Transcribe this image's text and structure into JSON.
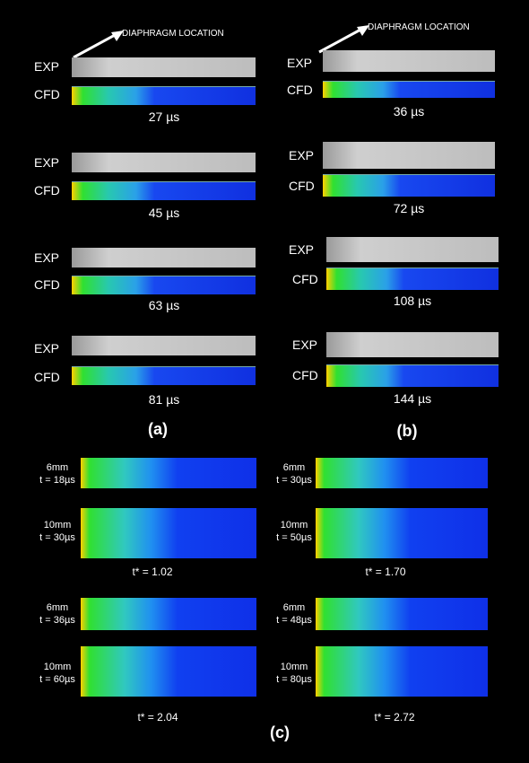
{
  "panel_a": {
    "label": "(a)",
    "annotation": "DIAPHRAGM LOCATION",
    "rows": [
      {
        "exp": "EXP",
        "cfd": "CFD",
        "time": "27 µs"
      },
      {
        "exp": "EXP",
        "cfd": "CFD",
        "time": "45 µs"
      },
      {
        "exp": "EXP",
        "cfd": "CFD",
        "time": "63 µs"
      },
      {
        "exp": "EXP",
        "cfd": "CFD",
        "time": "81 µs"
      }
    ]
  },
  "panel_b": {
    "label": "(b)",
    "annotation": "DIAPHRAGM LOCATION",
    "rows": [
      {
        "exp": "EXP",
        "cfd": "CFD",
        "time": "36 µs"
      },
      {
        "exp": "EXP",
        "cfd": "CFD",
        "time": "72 µs"
      },
      {
        "exp": "EXP",
        "cfd": "CFD",
        "time": "108 µs"
      },
      {
        "exp": "EXP",
        "cfd": "CFD",
        "time": "144 µs"
      }
    ]
  },
  "panel_c": {
    "label": "(c)",
    "blocks": [
      {
        "small": "6mm",
        "small_t": "t = 18µs",
        "big": "10mm",
        "big_t": "t = 30µs",
        "tstar": "t* = 1.02"
      },
      {
        "small": "6mm",
        "small_t": "t = 30µs",
        "big": "10mm",
        "big_t": "t = 50µs",
        "tstar": "t* = 1.70"
      },
      {
        "small": "6mm",
        "small_t": "t = 36µs",
        "big": "10mm",
        "big_t": "t = 60µs",
        "tstar": "t* = 2.04"
      },
      {
        "small": "6mm",
        "small_t": "t = 48µs",
        "big": "10mm",
        "big_t": "t = 80µs",
        "tstar": "t* = 2.72"
      }
    ]
  }
}
